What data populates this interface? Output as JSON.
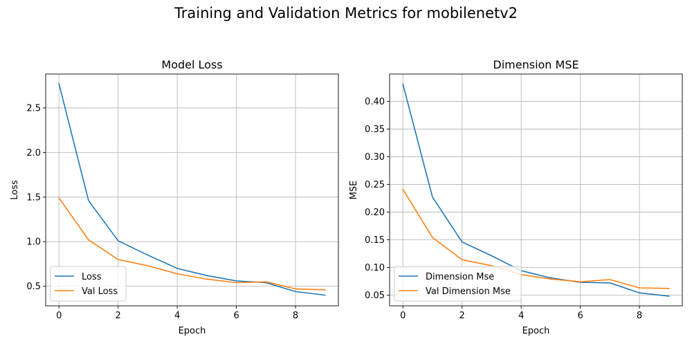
{
  "figure": {
    "suptitle": "Training and Validation Metrics for mobilenetv2"
  },
  "chart_data": [
    {
      "type": "line",
      "title": "Model Loss",
      "xlabel": "Epoch",
      "ylabel": "Loss",
      "x": [
        0,
        1,
        2,
        3,
        4,
        5,
        6,
        7,
        8,
        9
      ],
      "xlim": [
        -0.45,
        9.45
      ],
      "ylim": [
        0.28,
        2.88
      ],
      "xticks": [
        0,
        2,
        4,
        6,
        8
      ],
      "yticks": [
        0.5,
        1.0,
        1.5,
        2.0,
        2.5
      ],
      "ytick_labels": [
        "0.5",
        "1.0",
        "1.5",
        "2.0",
        "2.5"
      ],
      "grid": true,
      "legend_position": "lower-left",
      "series": [
        {
          "name": "Loss",
          "color": "#1f77b4",
          "values": [
            2.77,
            1.46,
            1.01,
            0.85,
            0.7,
            0.62,
            0.56,
            0.54,
            0.44,
            0.4
          ]
        },
        {
          "name": "Val Loss",
          "color": "#ff7f0e",
          "values": [
            1.49,
            1.02,
            0.8,
            0.73,
            0.64,
            0.58,
            0.54,
            0.55,
            0.47,
            0.46
          ]
        }
      ]
    },
    {
      "type": "line",
      "title": "Dimension MSE",
      "xlabel": "Epoch",
      "ylabel": "MSE",
      "x": [
        0,
        1,
        2,
        3,
        4,
        5,
        6,
        7,
        8,
        9
      ],
      "xlim": [
        -0.45,
        9.45
      ],
      "ylim": [
        0.0305,
        0.4493
      ],
      "xticks": [
        0,
        2,
        4,
        6,
        8
      ],
      "yticks": [
        0.05,
        0.1,
        0.15,
        0.2,
        0.25,
        0.3,
        0.35,
        0.4
      ],
      "ytick_labels": [
        "0.05",
        "0.10",
        "0.15",
        "0.20",
        "0.25",
        "0.30",
        "0.35",
        "0.40"
      ],
      "grid": true,
      "legend_position": "lower-left",
      "series": [
        {
          "name": "Dimension Mse",
          "color": "#1f77b4",
          "values": [
            0.431,
            0.227,
            0.146,
            0.121,
            0.094,
            0.081,
            0.073,
            0.072,
            0.054,
            0.048
          ]
        },
        {
          "name": "Val Dimension Mse",
          "color": "#ff7f0e",
          "values": [
            0.241,
            0.154,
            0.114,
            0.103,
            0.087,
            0.079,
            0.074,
            0.078,
            0.063,
            0.062
          ]
        }
      ]
    }
  ]
}
